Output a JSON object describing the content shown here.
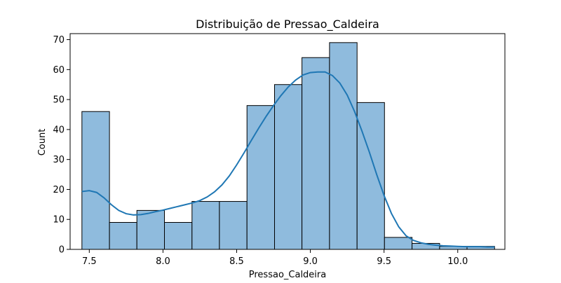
{
  "chart_data": {
    "type": "bar",
    "title": "Distribuição de Pressao_Caldeira",
    "xlabel": "Pressao_Caldeira",
    "ylabel": "Count",
    "xlim": [
      7.37,
      10.32
    ],
    "ylim": [
      0,
      72
    ],
    "x_ticks": [
      7.5,
      8.0,
      8.5,
      9.0,
      9.5,
      10.0
    ],
    "x_tick_labels": [
      "7.5",
      "8.0",
      "8.5",
      "9.0",
      "9.5",
      "10.0"
    ],
    "y_ticks": [
      0,
      10,
      20,
      30,
      40,
      50,
      60,
      70
    ],
    "y_tick_labels": [
      "0",
      "10",
      "20",
      "30",
      "40",
      "50",
      "60",
      "70"
    ],
    "bin_edges": [
      7.45,
      7.637,
      7.823,
      8.01,
      8.197,
      8.383,
      8.57,
      8.757,
      8.943,
      9.13,
      9.317,
      9.503,
      9.69,
      9.877,
      10.063,
      10.25
    ],
    "counts": [
      46,
      9,
      13,
      9,
      16,
      16,
      48,
      55,
      64,
      69,
      49,
      4,
      2,
      1,
      1
    ],
    "kde": {
      "x": [
        7.45,
        7.5,
        7.55,
        7.6,
        7.65,
        7.7,
        7.75,
        7.8,
        7.85,
        7.9,
        7.95,
        8.0,
        8.05,
        8.1,
        8.15,
        8.2,
        8.25,
        8.3,
        8.35,
        8.4,
        8.45,
        8.5,
        8.55,
        8.6,
        8.65,
        8.7,
        8.75,
        8.8,
        8.85,
        8.9,
        8.95,
        9.0,
        9.05,
        9.1,
        9.15,
        9.2,
        9.25,
        9.3,
        9.35,
        9.4,
        9.45,
        9.5,
        9.55,
        9.6,
        9.65,
        9.7,
        9.75,
        9.8,
        9.85,
        9.9,
        9.95,
        10.0,
        10.05,
        10.1,
        10.15,
        10.2,
        10.25
      ],
      "y": [
        19.3,
        19.6,
        19.0,
        17.2,
        14.9,
        13.0,
        11.9,
        11.5,
        11.6,
        12.0,
        12.6,
        13.1,
        13.7,
        14.3,
        14.9,
        15.5,
        16.3,
        17.5,
        19.2,
        21.5,
        24.5,
        28.2,
        32.2,
        36.4,
        40.5,
        44.4,
        48.0,
        51.3,
        54.2,
        56.5,
        58.2,
        59.0,
        59.2,
        59.2,
        58.0,
        55.5,
        51.5,
        46.0,
        39.5,
        32.5,
        25.0,
        18.0,
        12.0,
        7.5,
        4.5,
        3.0,
        2.2,
        1.7,
        1.4,
        1.2,
        1.1,
        1.0,
        0.9,
        0.9,
        0.9,
        0.8,
        0.8
      ]
    },
    "bar_fill": "#8fbbdd",
    "bar_edge": "#000000",
    "kde_color": "#1f77b4",
    "grid": false,
    "legend": "none"
  }
}
